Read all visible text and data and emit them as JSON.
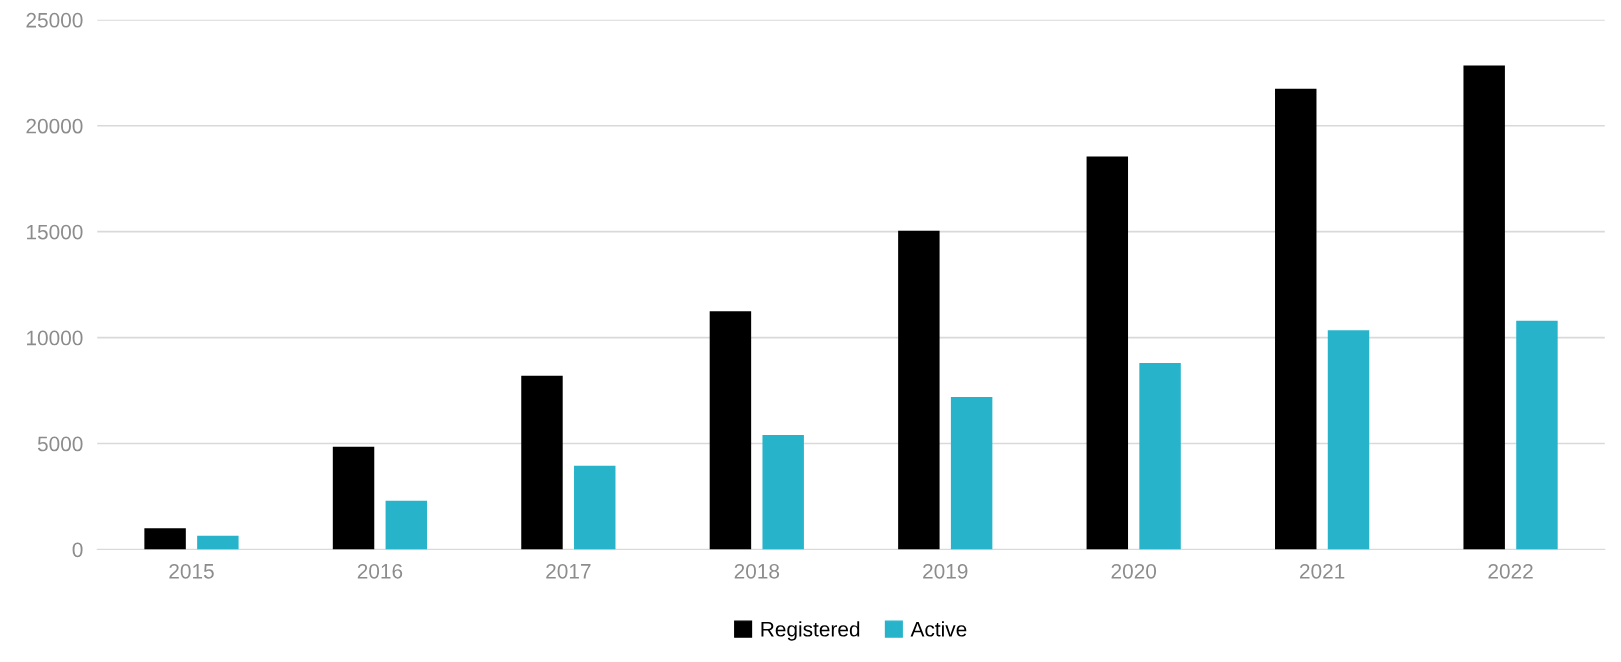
{
  "chart_data": {
    "type": "bar",
    "categories": [
      "2015",
      "2016",
      "2017",
      "2018",
      "2019",
      "2020",
      "2021",
      "2022"
    ],
    "series": [
      {
        "name": "Registered",
        "color": "#000000",
        "values": [
          1000,
          4850,
          8200,
          11250,
          15050,
          18550,
          21750,
          22850
        ]
      },
      {
        "name": "Active",
        "color": "#27b4cb",
        "values": [
          650,
          2300,
          3950,
          5400,
          7200,
          8800,
          10350,
          10800
        ]
      }
    ],
    "ylim": [
      0,
      25000
    ],
    "yticks": [
      0,
      5000,
      10000,
      15000,
      20000,
      25000
    ],
    "grid": "y",
    "legend": "bottom"
  }
}
